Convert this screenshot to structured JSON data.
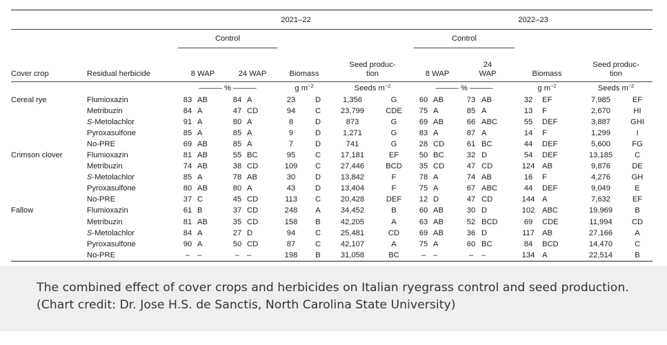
{
  "years": [
    "2021–22",
    "2022–23"
  ],
  "control_label": "Control",
  "headers": {
    "cover_crop": "Cover crop",
    "residual_herbicide": "Residual herbicide",
    "wap8_y1": "8 WAP",
    "wap24_y1": "24 WAP",
    "biomass": "Biomass",
    "seed_prod_line1": "Seed produc-",
    "seed_prod_line2": "tion",
    "wap8_y2": "8 WAP",
    "wap24_y2_line1": "24",
    "wap24_y2_line2": "WAP"
  },
  "units": {
    "percent": "——— % ———",
    "biomass_base": "g m",
    "biomass_exp": "−2",
    "seeds_base": "Seeds m",
    "seeds_exp": "−2"
  },
  "rows": [
    {
      "crop": "Cereal rye",
      "herb": "Flumioxazin",
      "v": [
        "83",
        "AB",
        "84",
        "A",
        "23",
        "D",
        "1,356",
        "G",
        "60",
        "AB",
        "73",
        "AB",
        "32",
        "EF",
        "7,985",
        "EF"
      ]
    },
    {
      "crop": "",
      "herb": "Metribuzin",
      "v": [
        "84",
        "A",
        "47",
        "CD",
        "94",
        "C",
        "23,799",
        "CDE",
        "75",
        "A",
        "85",
        "A",
        "13",
        "F",
        "2,670",
        "HI"
      ]
    },
    {
      "crop": "",
      "herb_prefix": "S",
      "herb": "-Metolachlor",
      "v": [
        "91",
        "A",
        "80",
        "A",
        "8",
        "D",
        "873",
        "G",
        "69",
        "AB",
        "66",
        "ABC",
        "55",
        "DEF",
        "3,887",
        "GHI"
      ]
    },
    {
      "crop": "",
      "herb": "Pyroxasulfone",
      "v": [
        "85",
        "A",
        "85",
        "A",
        "9",
        "D",
        "1,271",
        "G",
        "83",
        "A",
        "87",
        "A",
        "14",
        "F",
        "1,299",
        "I"
      ]
    },
    {
      "crop": "",
      "herb": "No-PRE",
      "v": [
        "69",
        "AB",
        "85",
        "A",
        "7",
        "D",
        "741",
        "G",
        "28",
        "CD",
        "61",
        "BC",
        "44",
        "DEF",
        "5,600",
        "FG"
      ]
    },
    {
      "crop": "Crimson clover",
      "herb": "Flumioxazin",
      "v": [
        "81",
        "AB",
        "55",
        "BC",
        "95",
        "C",
        "17,181",
        "EF",
        "50",
        "BC",
        "32",
        "D",
        "54",
        "DEF",
        "13,185",
        "C"
      ]
    },
    {
      "crop": "",
      "herb": "Metribuzin",
      "v": [
        "74",
        "AB",
        "38",
        "CD",
        "109",
        "C",
        "27,446",
        "BCD",
        "35",
        "CD",
        "47",
        "CD",
        "124",
        "AB",
        "9,876",
        "DE"
      ]
    },
    {
      "crop": "",
      "herb_prefix": "S",
      "herb": "-Metolachlor",
      "v": [
        "85",
        "A",
        "78",
        "AB",
        "30",
        "D",
        "13,842",
        "F",
        "78",
        "A",
        "74",
        "AB",
        "16",
        "F",
        "4,276",
        "GH"
      ]
    },
    {
      "crop": "",
      "herb": "Pyroxasulfone",
      "v": [
        "80",
        "AB",
        "80",
        "A",
        "43",
        "D",
        "13,404",
        "F",
        "75",
        "A",
        "67",
        "ABC",
        "44",
        "DEF",
        "9,049",
        "E"
      ]
    },
    {
      "crop": "",
      "herb": "No-PRE",
      "v": [
        "37",
        "C",
        "45",
        "CD",
        "113",
        "C",
        "20,428",
        "DEF",
        "12",
        "D",
        "47",
        "CD",
        "144",
        "A",
        "7,632",
        "EF"
      ]
    },
    {
      "crop": "Fallow",
      "herb": "Flumioxazin",
      "v": [
        "61",
        "B",
        "37",
        "CD",
        "248",
        "A",
        "34,452",
        "B",
        "60",
        "AB",
        "30",
        "D",
        "102",
        "ABC",
        "19,969",
        "B"
      ]
    },
    {
      "crop": "",
      "herb": "Metribuzin",
      "v": [
        "81",
        "AB",
        "35",
        "CD",
        "158",
        "B",
        "42,205",
        "A",
        "63",
        "AB",
        "52",
        "BCD",
        "69",
        "CDE",
        "11,994",
        "CD"
      ]
    },
    {
      "crop": "",
      "herb_prefix": "S",
      "herb": "-Metolachlor",
      "v": [
        "84",
        "A",
        "27",
        "D",
        "94",
        "C",
        "25,481",
        "CD",
        "69",
        "AB",
        "36",
        "D",
        "117",
        "AB",
        "27,166",
        "A"
      ]
    },
    {
      "crop": "",
      "herb": "Pyroxasulfone",
      "v": [
        "90",
        "A",
        "50",
        "CD",
        "87",
        "C",
        "42,107",
        "A",
        "75",
        "A",
        "60",
        "BC",
        "84",
        "BCD",
        "14,470",
        "C"
      ]
    },
    {
      "crop": "",
      "herb": "No-PRE",
      "v": [
        "–",
        "–",
        "–",
        "–",
        "198",
        "B",
        "31,058",
        "BC",
        "–",
        "–",
        "–",
        "–",
        "134",
        "A",
        "22,514",
        "B"
      ]
    }
  ],
  "caption": "The combined effect of cover crops and herbicides on Italian ryegrass control and seed production. (Chart credit: Dr. Jose H.S. de Sanctis, North Carolina State University)"
}
